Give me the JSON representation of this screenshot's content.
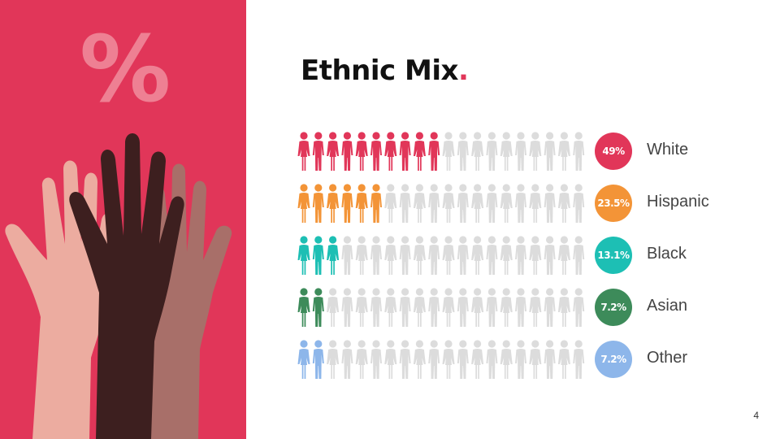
{
  "slide": {
    "decor_symbol": "%",
    "title": "Ethnic Mix",
    "title_dot": ".",
    "page_number": "4"
  },
  "colors": {
    "left_panel": "#e13659",
    "inactive_person": "#dcdcdc",
    "hands": [
      "#ecaca0",
      "#3d1f1f",
      "#a86f69"
    ]
  },
  "chart_data": {
    "type": "pictograph",
    "icons_per_row": 20,
    "rows": [
      {
        "name": "White",
        "percent": 49,
        "value_label": "49%",
        "filled_icons": 10,
        "color": "#e13659"
      },
      {
        "name": "Hispanic",
        "percent": 23.5,
        "value_label": "23.5%",
        "filled_icons": 6,
        "color": "#f39437"
      },
      {
        "name": "Black",
        "percent": 13.1,
        "value_label": "13.1%",
        "filled_icons": 3,
        "color": "#1dbfb4"
      },
      {
        "name": "Asian",
        "percent": 7.2,
        "value_label": "7.2%",
        "filled_icons": 2,
        "color": "#3d8b5a"
      },
      {
        "name": "Other",
        "percent": 7.2,
        "value_label": "7.2%",
        "filled_icons": 2,
        "color": "#8db6ea"
      }
    ]
  }
}
